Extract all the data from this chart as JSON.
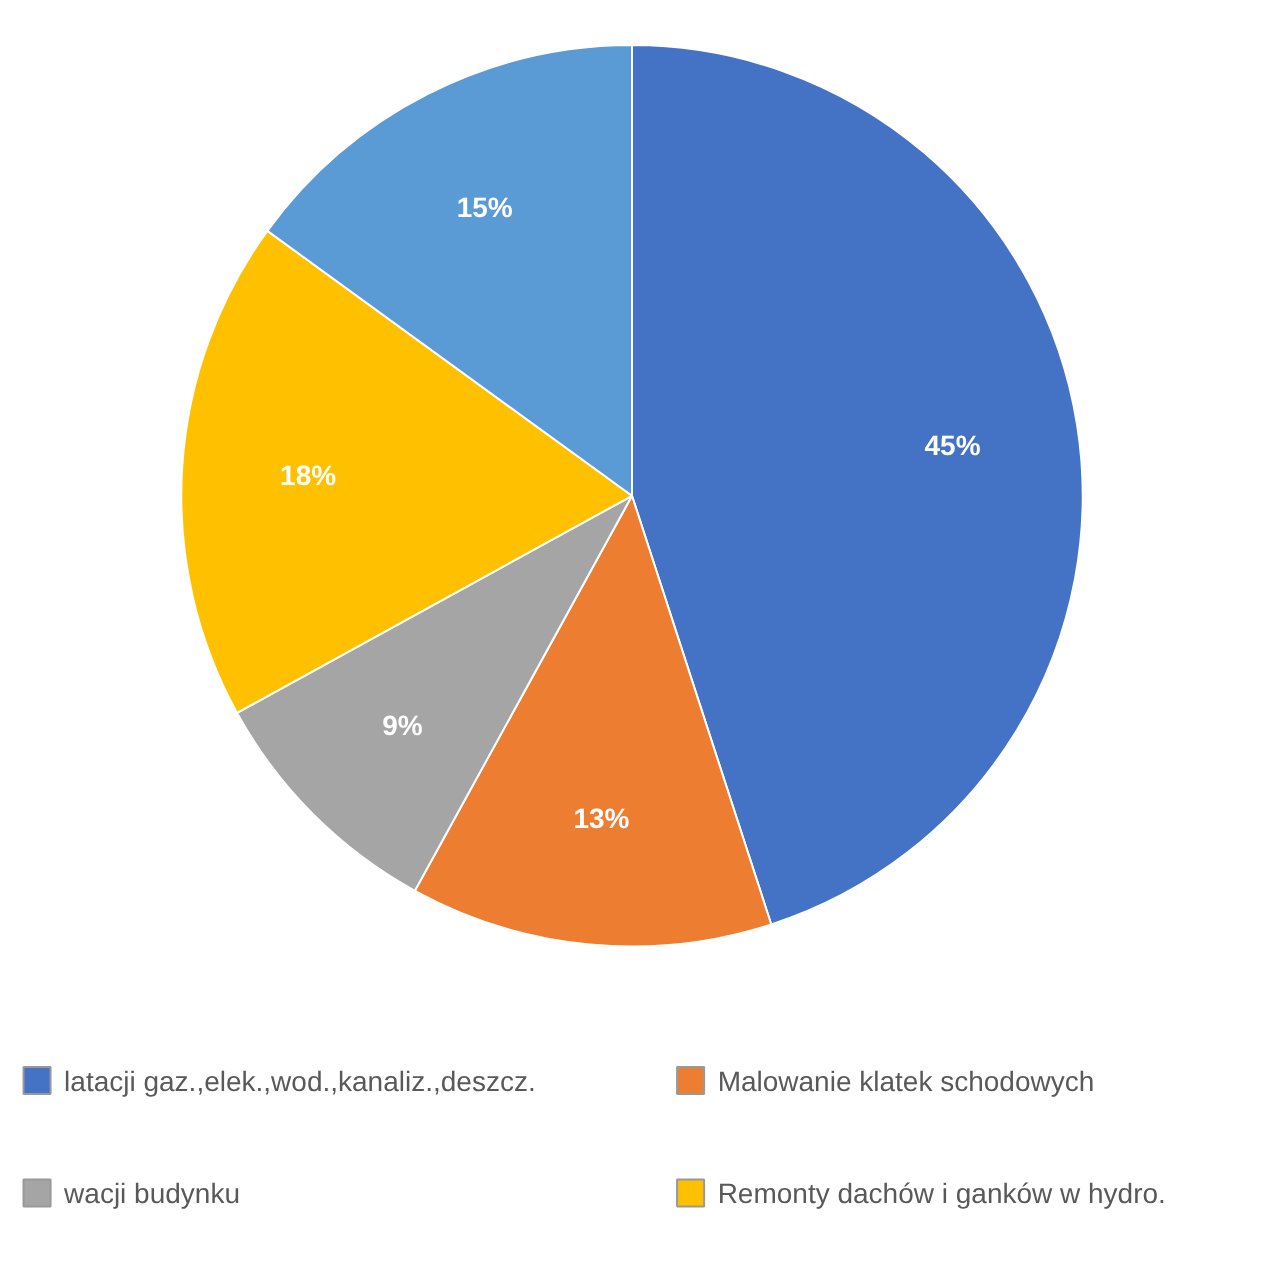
{
  "chart_data": {
    "type": "pie",
    "categories": [
      "latacji gaz.,elek.,wod.,kanaliz.,deszcz.",
      "Malowanie klatek schodowych",
      "wacji budynku",
      "Remonty dachów i ganków w hydro.",
      null
    ],
    "values": [
      45,
      13,
      9,
      18,
      15
    ],
    "colors": [
      "#4472c4",
      "#ed7d31",
      "#a5a5a5",
      "#ffc000",
      "#5b9bd5"
    ],
    "value_labels": [
      "45%",
      "13%",
      "9%",
      "18%",
      "15%"
    ],
    "legend": "bottom"
  }
}
